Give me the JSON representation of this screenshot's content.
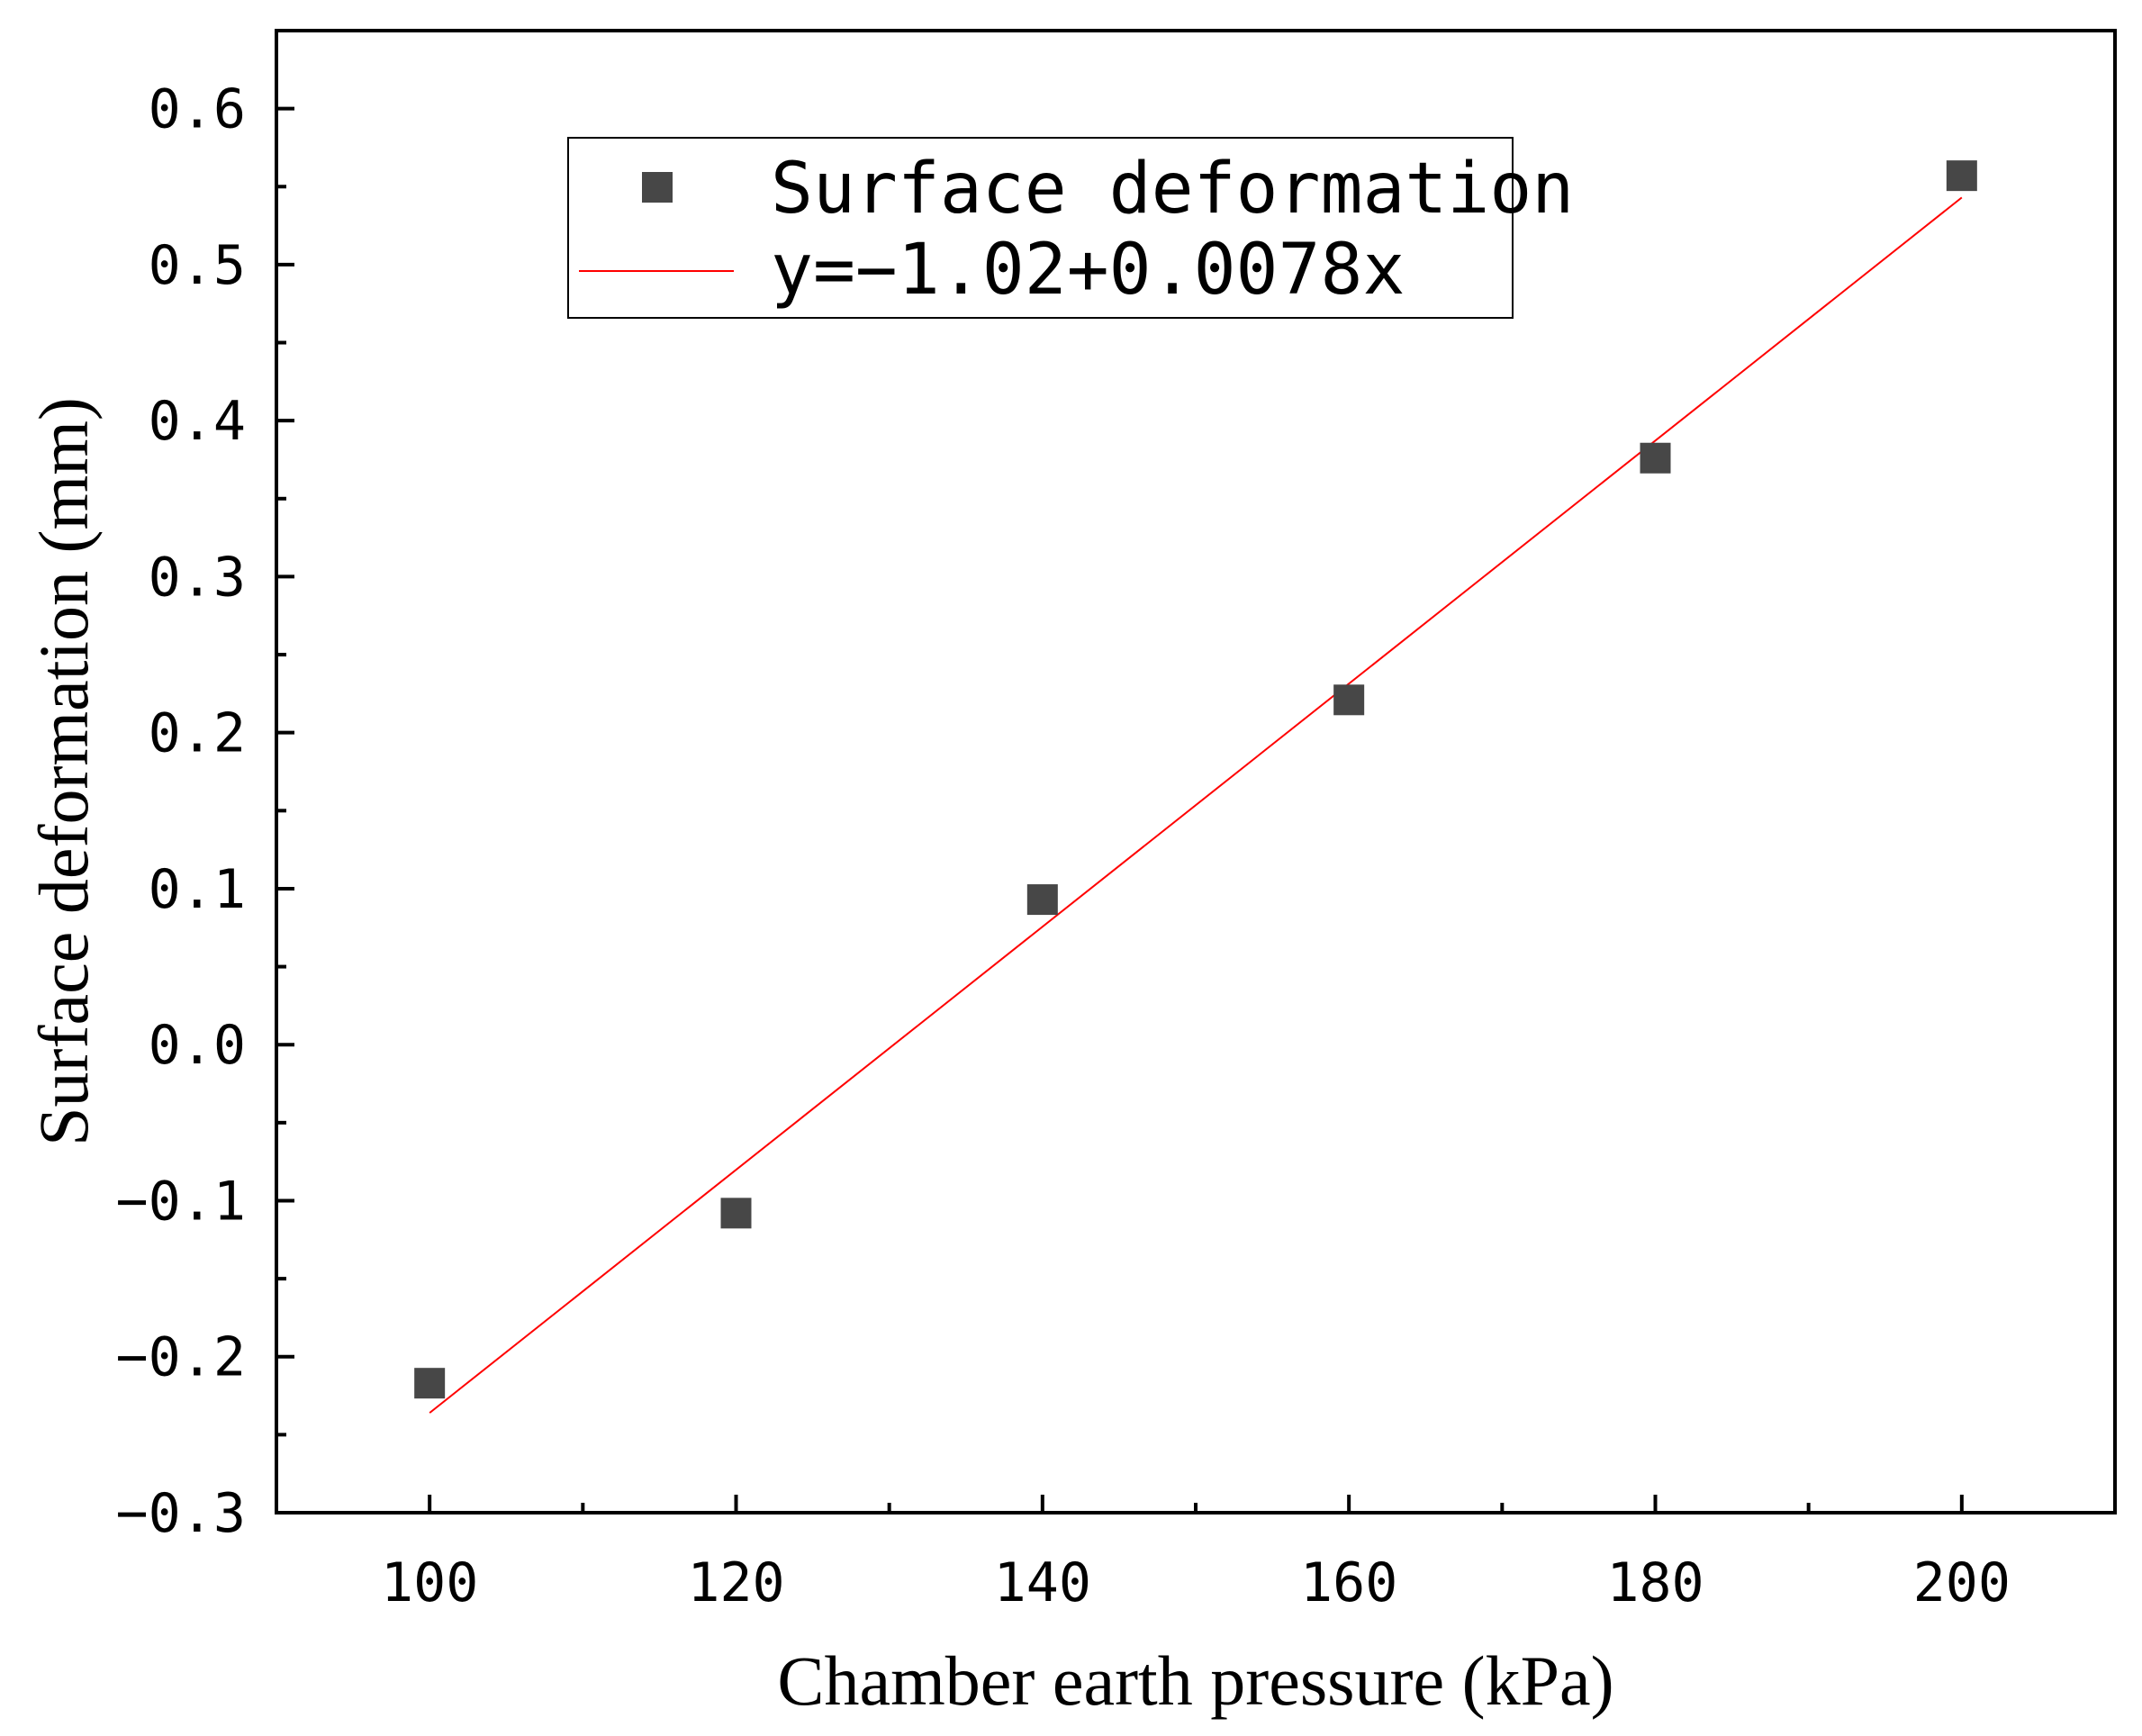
{
  "chart_data": {
    "type": "scatter",
    "title": "",
    "xlabel": "Chamber earth pressure (kPa)",
    "ylabel": "Surface deformation (mm)",
    "xlim": [
      90,
      210
    ],
    "ylim": [
      -0.3,
      0.65
    ],
    "x_ticks": [
      100,
      120,
      140,
      160,
      180,
      200
    ],
    "x_tick_labels": [
      "100",
      "120",
      "140",
      "160",
      "180",
      "200"
    ],
    "x_minor_ticks": [
      110,
      130,
      150,
      170,
      190
    ],
    "y_ticks": [
      -0.3,
      -0.2,
      -0.1,
      0.0,
      0.1,
      0.2,
      0.3,
      0.4,
      0.5,
      0.6
    ],
    "y_tick_labels": [
      "−0.3",
      "−0.2",
      "−0.1",
      "0.0",
      "0.1",
      "0.2",
      "0.3",
      "0.4",
      "0.5",
      "0.6"
    ],
    "y_minor_ticks": [
      -0.25,
      -0.15,
      -0.05,
      0.05,
      0.15,
      0.25,
      0.35,
      0.45,
      0.55
    ],
    "grid": false,
    "legend_position": "top-center",
    "series": [
      {
        "name": "Surface deformation",
        "kind": "scatter",
        "marker": "square",
        "color": "#474747",
        "x": [
          100,
          120,
          140,
          160,
          180,
          200
        ],
        "y": [
          -0.217,
          -0.108,
          0.093,
          0.221,
          0.376,
          0.557
        ]
      },
      {
        "name": "y=−1.02+0.0078x",
        "kind": "line",
        "color": "#ff0000",
        "x": [
          100,
          200
        ],
        "y": [
          -0.236,
          0.543
        ]
      }
    ]
  }
}
